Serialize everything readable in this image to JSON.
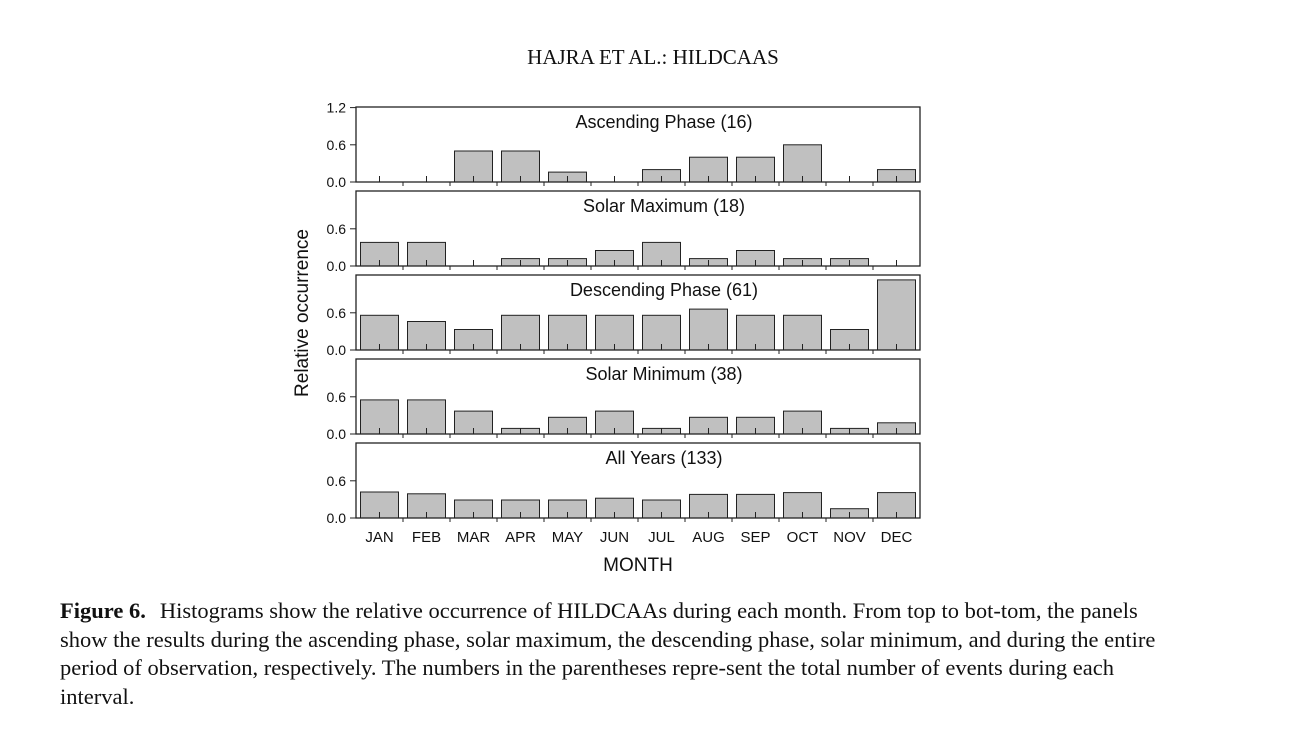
{
  "running_head": "HAJRA ET AL.: HILDCAAS",
  "caption": {
    "label": "Figure 6.",
    "text": "Histograms show the relative occurrence of HILDCAAs during each month. From top to bot-tom, the panels show the results during the ascending phase, solar maximum, the descending phase, solar minimum, and during the entire period of observation, respectively. The numbers in the parentheses repre-sent the total number of events during each interval."
  },
  "chart_data": {
    "type": "bar",
    "xlabel": "MONTH",
    "ylabel": "Relative occurrence",
    "categories": [
      "JAN",
      "FEB",
      "MAR",
      "APR",
      "MAY",
      "JUN",
      "JUL",
      "AUG",
      "SEP",
      "OCT",
      "NOV",
      "DEC"
    ],
    "bar_color": "#c0c0c0",
    "panels": [
      {
        "title": "Ascending Phase (16)",
        "ylim": [
          0,
          1.2
        ],
        "yticks": [
          "1.2",
          "0.6",
          "0.0"
        ],
        "values": [
          0,
          0,
          0.5,
          0.5,
          0.16,
          0,
          0.2,
          0.4,
          0.4,
          0.6,
          0,
          0.2
        ]
      },
      {
        "title": "Solar Maximum (18)",
        "ylim": [
          0,
          1.2
        ],
        "yticks": [
          "0.6",
          "0.0"
        ],
        "values": [
          0.38,
          0.38,
          0,
          0.12,
          0.12,
          0.25,
          0.38,
          0.12,
          0.25,
          0.12,
          0.12,
          0
        ]
      },
      {
        "title": "Descending Phase (61)",
        "ylim": [
          0,
          1.2
        ],
        "yticks": [
          "0.6",
          "0.0"
        ],
        "values": [
          0.56,
          0.46,
          0.33,
          0.56,
          0.56,
          0.56,
          0.56,
          0.66,
          0.56,
          0.56,
          0.33,
          1.13
        ]
      },
      {
        "title": "Solar Minimum (38)",
        "ylim": [
          0,
          1.2
        ],
        "yticks": [
          "0.6",
          "0.0"
        ],
        "values": [
          0.55,
          0.55,
          0.37,
          0.09,
          0.27,
          0.37,
          0.09,
          0.27,
          0.27,
          0.37,
          0.09,
          0.18
        ]
      },
      {
        "title": "All Years (133)",
        "ylim": [
          0,
          1.2
        ],
        "yticks": [
          "0.6",
          "0.0"
        ],
        "values": [
          0.42,
          0.39,
          0.29,
          0.29,
          0.29,
          0.32,
          0.29,
          0.38,
          0.38,
          0.41,
          0.15,
          0.41
        ]
      }
    ]
  }
}
